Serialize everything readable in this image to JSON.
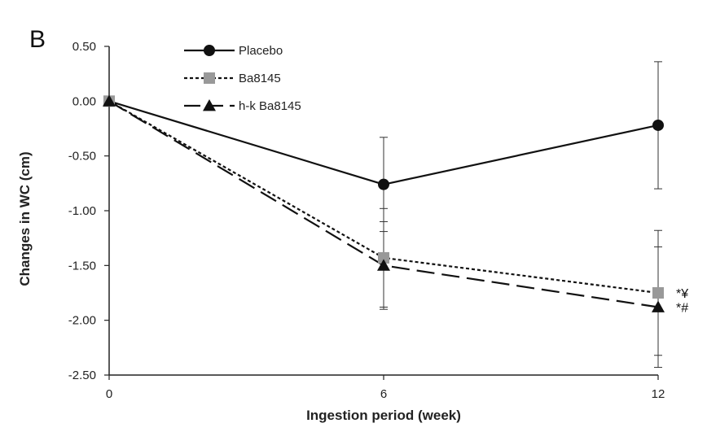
{
  "panel_label": "B",
  "chart_data": {
    "type": "line",
    "xlabel": "Ingestion period (week)",
    "ylabel": "Changes in WC (cm)",
    "x": [
      0,
      6,
      12
    ],
    "x_ticks": [
      "0",
      "6",
      "12"
    ],
    "ylim": [
      -2.5,
      0.5
    ],
    "y_ticks": [
      "0.50",
      "0.00",
      "-0.50",
      "-1.00",
      "-1.50",
      "-2.00",
      "-2.50"
    ],
    "legend_position": "top-left",
    "grid": false,
    "series": [
      {
        "name": "Placebo",
        "marker": "circle",
        "line_style": "solid",
        "color": "#111111",
        "values": [
          0.0,
          -0.76,
          -0.22
        ],
        "error": [
          0,
          0.43,
          0.58
        ]
      },
      {
        "name": "Ba8145",
        "marker": "square",
        "line_style": "dotted",
        "color": "#999999",
        "values": [
          0.0,
          -1.43,
          -1.75
        ],
        "error": [
          0,
          0.45,
          0.57
        ]
      },
      {
        "name": "h-k Ba8145",
        "marker": "triangle",
        "line_style": "dashed",
        "color": "#111111",
        "values": [
          0.0,
          -1.5,
          -1.88
        ],
        "error": [
          0,
          0.4,
          0.55
        ]
      }
    ],
    "annotations": [
      {
        "series": "Ba8145",
        "x": 12,
        "text": "*¥"
      },
      {
        "series": "h-k Ba8145",
        "x": 12,
        "text": "*#"
      }
    ]
  }
}
